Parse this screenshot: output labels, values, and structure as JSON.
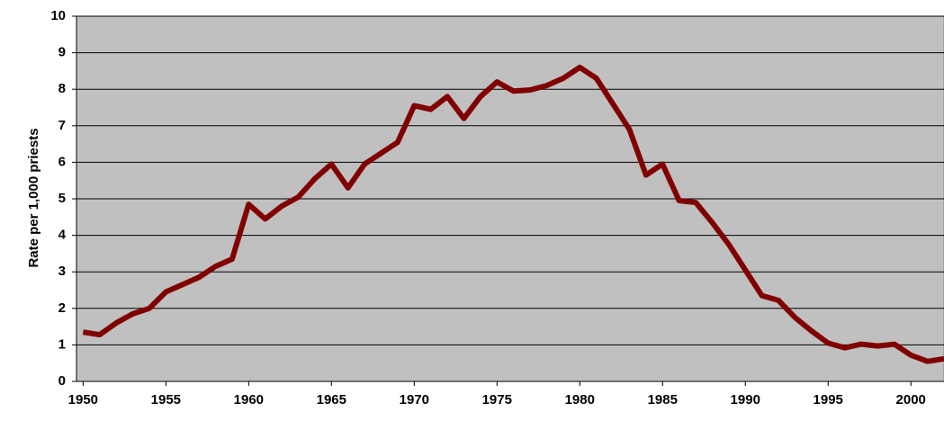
{
  "chart_data": {
    "type": "line",
    "y_label": "Rate per 1,000 priests",
    "x": [
      1950,
      1951,
      1952,
      1953,
      1954,
      1955,
      1956,
      1957,
      1958,
      1959,
      1960,
      1961,
      1962,
      1963,
      1964,
      1965,
      1966,
      1967,
      1968,
      1969,
      1970,
      1971,
      1972,
      1973,
      1974,
      1975,
      1976,
      1977,
      1978,
      1979,
      1980,
      1981,
      1982,
      1983,
      1984,
      1985,
      1986,
      1987,
      1988,
      1989,
      1990,
      1991,
      1992,
      1993,
      1994,
      1995,
      1996,
      1997,
      1998,
      1999,
      2000,
      2001,
      2002
    ],
    "series": [
      {
        "color": "#800000",
        "values": [
          1.35,
          1.28,
          1.6,
          1.85,
          2.0,
          2.45,
          2.65,
          2.85,
          3.15,
          3.35,
          4.85,
          4.45,
          4.8,
          5.05,
          5.55,
          5.95,
          5.3,
          5.95,
          6.25,
          6.55,
          7.55,
          7.45,
          7.8,
          7.2,
          7.8,
          8.2,
          7.95,
          7.98,
          8.1,
          8.3,
          8.6,
          8.3,
          7.6,
          6.9,
          5.65,
          5.95,
          4.95,
          4.9,
          4.35,
          3.75,
          3.05,
          2.35,
          2.22,
          1.75,
          1.38,
          1.05,
          0.92,
          1.02,
          0.97,
          1.02,
          0.72,
          0.55,
          0.62
        ]
      }
    ],
    "xlim": [
      1949.6,
      2002
    ],
    "xticks": [
      1950,
      1955,
      1960,
      1965,
      1970,
      1975,
      1980,
      1985,
      1990,
      1995,
      2000
    ],
    "ylim": [
      0,
      10
    ],
    "yticks": [
      0,
      1,
      2,
      3,
      4,
      5,
      6,
      7,
      8,
      9,
      10
    ],
    "grid": true,
    "plot_background": "#c0c0c0"
  }
}
